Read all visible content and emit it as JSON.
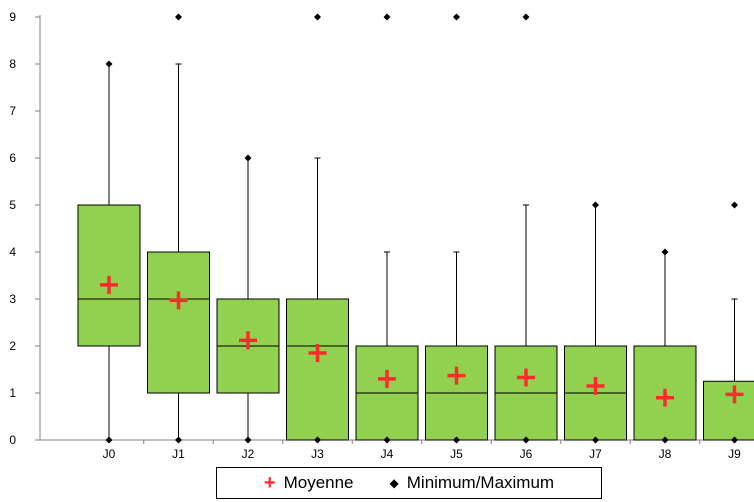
{
  "chart_data": {
    "type": "boxplot",
    "title": "",
    "xlabel": "",
    "ylabel": "",
    "ylim": [
      0,
      9
    ],
    "yticks": [
      0,
      1,
      2,
      3,
      4,
      5,
      6,
      7,
      8,
      9
    ],
    "categories": [
      "J0",
      "J1",
      "J2",
      "J3",
      "J4",
      "J5",
      "J6",
      "J7",
      "J8",
      "J9"
    ],
    "boxes": [
      {
        "category": "J0",
        "min": 0,
        "q1": 2,
        "median": 3,
        "q3": 5,
        "whisker_low": 0,
        "whisker_high": 8,
        "max": 8,
        "mean": 3.3
      },
      {
        "category": "J1",
        "min": 0,
        "q1": 1,
        "median": 3,
        "q3": 4,
        "whisker_low": 0,
        "whisker_high": 8,
        "max": 9,
        "mean": 2.97
      },
      {
        "category": "J2",
        "min": 0,
        "q1": 1,
        "median": 2,
        "q3": 3,
        "whisker_low": 0,
        "whisker_high": 6,
        "max": 6,
        "mean": 2.12
      },
      {
        "category": "J3",
        "min": 0,
        "q1": 0,
        "median": 2,
        "q3": 3,
        "whisker_low": 0,
        "whisker_high": 6,
        "max": 9,
        "mean": 1.85
      },
      {
        "category": "J4",
        "min": 0,
        "q1": 0,
        "median": 1,
        "q3": 2,
        "whisker_low": 0,
        "whisker_high": 4,
        "max": 9,
        "mean": 1.3
      },
      {
        "category": "J5",
        "min": 0,
        "q1": 0,
        "median": 1,
        "q3": 2,
        "whisker_low": 0,
        "whisker_high": 4,
        "max": 9,
        "mean": 1.37
      },
      {
        "category": "J6",
        "min": 0,
        "q1": 0,
        "median": 1,
        "q3": 2,
        "whisker_low": 0,
        "whisker_high": 5,
        "max": 9,
        "mean": 1.33
      },
      {
        "category": "J7",
        "min": 0,
        "q1": 0,
        "median": 1,
        "q3": 2,
        "whisker_low": 0,
        "whisker_high": 5,
        "max": 5,
        "mean": 1.15
      },
      {
        "category": "J8",
        "min": 0,
        "q1": 0,
        "median": 0,
        "q3": 2,
        "whisker_low": 0,
        "whisker_high": 4,
        "max": 4,
        "mean": 0.9
      },
      {
        "category": "J9",
        "min": 0,
        "q1": 0,
        "median": 0,
        "q3": 1.25,
        "whisker_low": 0,
        "whisker_high": 3,
        "max": 5,
        "mean": 0.97
      }
    ],
    "legend": {
      "position": "bottom",
      "entries": [
        {
          "label": "Moyenne",
          "symbol": "+"
        },
        {
          "label": "Minimum/Maximum",
          "symbol": "◆"
        }
      ]
    },
    "colors": {
      "box_fill": "#92d050",
      "box_stroke": "#000000",
      "mean_marker": "#ff2a2a",
      "minmax_marker": "#000000",
      "axis": "#808080"
    },
    "grid": false
  }
}
